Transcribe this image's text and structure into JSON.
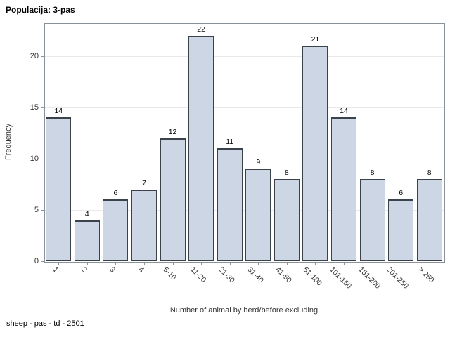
{
  "title": "Populacija: 3-pas",
  "footnote": "sheep - pas - td - 2501",
  "chart_data": {
    "type": "bar",
    "title": "Populacija: 3-pas",
    "categories": [
      "1",
      "2",
      "3",
      "4",
      "5-10",
      "11-20",
      "21-30",
      "31-40",
      "41-50",
      "51-100",
      "101-150",
      "151-200",
      "201-250",
      "> 250"
    ],
    "values": [
      14,
      4,
      6,
      7,
      12,
      22,
      11,
      9,
      8,
      21,
      14,
      8,
      6,
      8
    ],
    "xlabel": "Number of animal by herd/before excluding",
    "ylabel": "Frequency",
    "yticks": [
      0,
      5,
      10,
      15,
      20
    ],
    "ylim": [
      0,
      23.2
    ],
    "grid": true,
    "legend": "none",
    "xtick_rotation_deg": 45,
    "colors": {
      "bar_fill": "#ccd6e4",
      "bar_stroke": "#3b424a",
      "plot_border": "#8b9298",
      "gridline": "#e9e9e9",
      "text": "#333333",
      "title_text": "#000000",
      "background": "#ffffff"
    }
  }
}
